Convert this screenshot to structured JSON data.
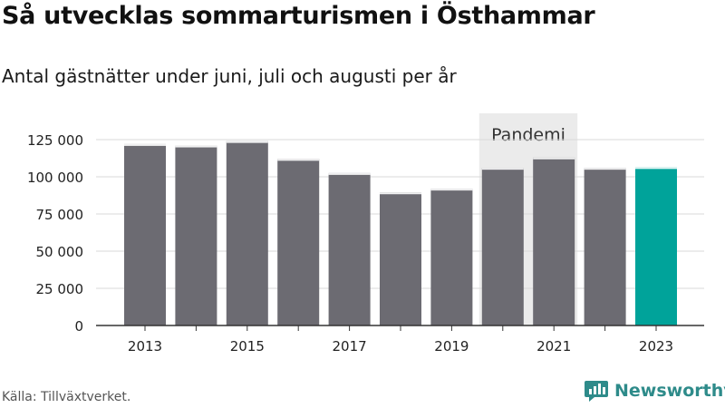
{
  "title": "Så utvecklas sommarturismen i Östhammar",
  "subtitle": "Antal gästnätter under juni, juli och augusti per år",
  "source": "Källa: Tillväxtverket.",
  "brand": "Newsworthy",
  "colors": {
    "bar": "#6c6b72",
    "highlight": "#00a39a",
    "band": "#ebebeb",
    "grid": "#d9d9d9",
    "brand": "#2e8b8a"
  },
  "chart_data": {
    "type": "bar",
    "categories": [
      "2013",
      "2014",
      "2015",
      "2016",
      "2017",
      "2018",
      "2019",
      "2020",
      "2021",
      "2022",
      "2023"
    ],
    "xtick_labels": [
      "2013",
      "",
      "2015",
      "",
      "2017",
      "",
      "2019",
      "",
      "2021",
      "",
      "2023"
    ],
    "values": [
      122000,
      121000,
      124000,
      112000,
      102500,
      89500,
      92000,
      106000,
      113000,
      106000,
      106500
    ],
    "highlight_category": "2023",
    "ylim": [
      0,
      125000
    ],
    "yticks": [
      0,
      25000,
      50000,
      75000,
      100000,
      125000
    ],
    "ytick_labels": [
      "0",
      "25 000",
      "50 000",
      "75 000",
      "100 000",
      "125 000"
    ],
    "grid": true,
    "annotation": {
      "label": "Pandemi",
      "categories": [
        "2020",
        "2021"
      ]
    }
  }
}
